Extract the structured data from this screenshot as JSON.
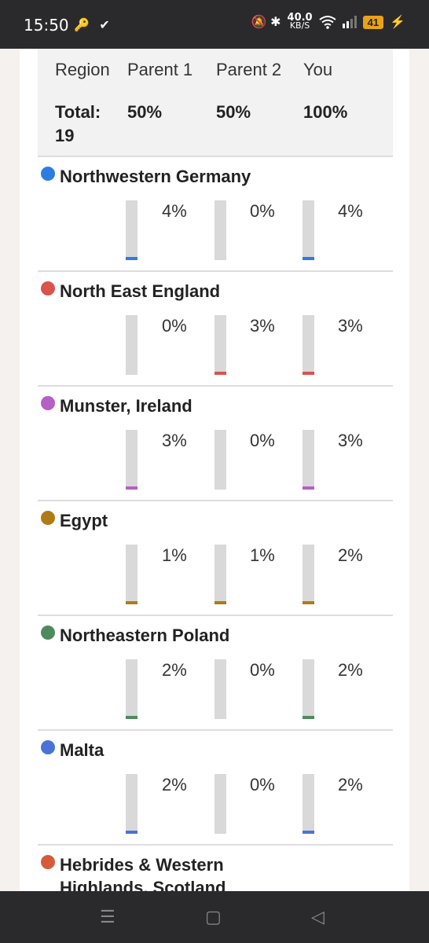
{
  "status_bar": {
    "time": "15:50",
    "left_icons": "🔑 ✔",
    "speed_value": "40.0",
    "speed_unit": "KB/S",
    "right_icons": "🔕 ✱",
    "signal": "📶",
    "battery": "41",
    "charging": "⚡"
  },
  "table": {
    "headers": [
      "Region",
      "Parent 1",
      "Parent 2",
      "You"
    ],
    "total_label": "Total: 19",
    "total_values": [
      "50%",
      "50%",
      "100%"
    ]
  },
  "regions": [
    {
      "name": "Northwestern Germany",
      "color": "#2b7de0",
      "values": [
        "4%",
        "0%",
        "4%"
      ],
      "fractions": [
        0.04,
        0.0,
        0.04
      ]
    },
    {
      "name": "North East England",
      "color": "#d9534f",
      "values": [
        "0%",
        "3%",
        "3%"
      ],
      "fractions": [
        0.0,
        0.03,
        0.03
      ]
    },
    {
      "name": "Munster, Ireland",
      "color": "#b65fc4",
      "values": [
        "3%",
        "0%",
        "3%"
      ],
      "fractions": [
        0.03,
        0.0,
        0.03
      ]
    },
    {
      "name": "Egypt",
      "color": "#b07a16",
      "values": [
        "1%",
        "1%",
        "2%"
      ],
      "fractions": [
        0.01,
        0.01,
        0.02
      ]
    },
    {
      "name": "Northeastern Poland",
      "color": "#4f8a5f",
      "values": [
        "2%",
        "0%",
        "2%"
      ],
      "fractions": [
        0.02,
        0.0,
        0.02
      ]
    },
    {
      "name": "Malta",
      "color": "#4a72d6",
      "values": [
        "2%",
        "0%",
        "2%"
      ],
      "fractions": [
        0.02,
        0.0,
        0.02
      ]
    },
    {
      "name": "Hebrides & Western Highlands, Scotland",
      "color": "#d65b3a",
      "values": [],
      "fractions": []
    }
  ],
  "nav": {
    "recent": "☰",
    "home": "▢",
    "back": "◁"
  }
}
